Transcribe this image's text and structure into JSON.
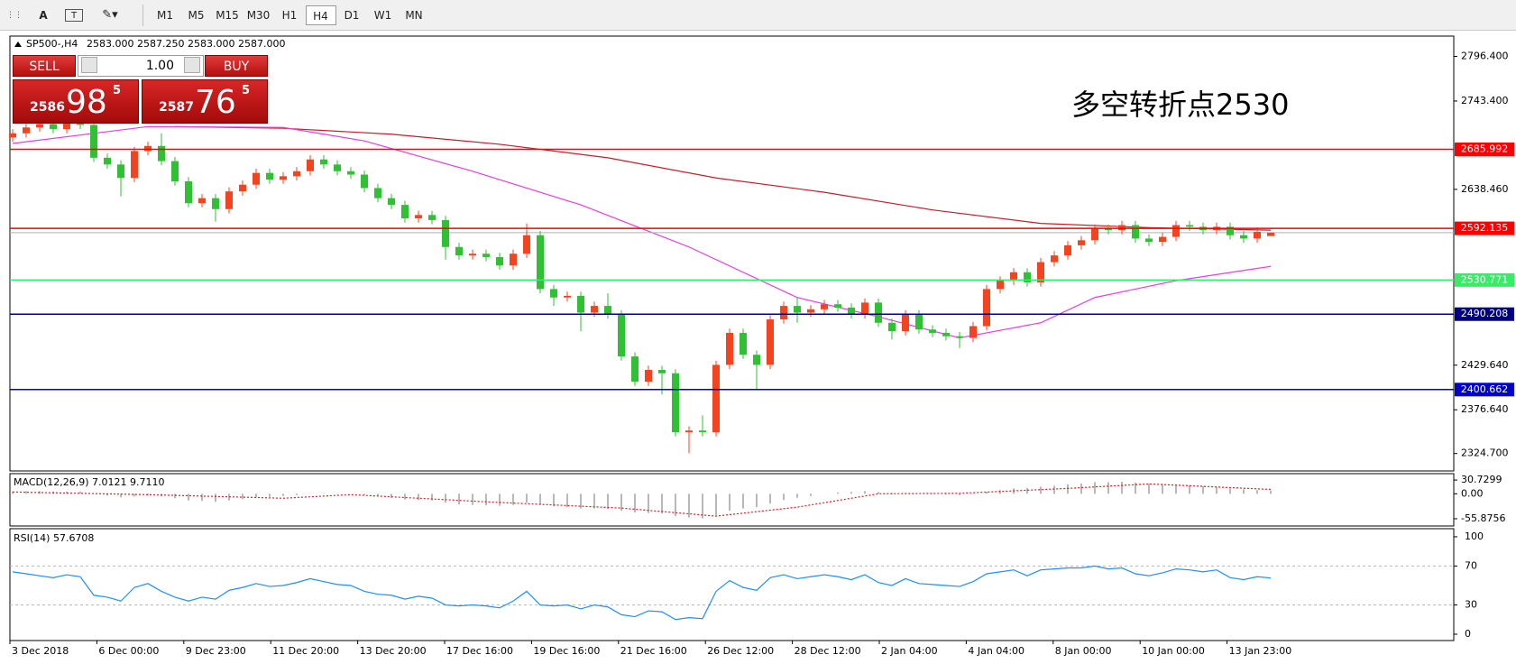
{
  "toolbar": {
    "text_tool": "A",
    "timeframes": [
      "M1",
      "M5",
      "M15",
      "M30",
      "H1",
      "H4",
      "D1",
      "W1",
      "MN"
    ],
    "active": "H4"
  },
  "trade": {
    "sell": "SELL",
    "buy": "BUY",
    "volume": {
      "value": 1,
      "label": "1.00"
    },
    "bid": {
      "big": "2586",
      "main": "98",
      "small": "5"
    },
    "ask": {
      "big": "2587",
      "main": "76",
      "small": "5"
    }
  },
  "chart_data": {
    "type": "candlestick",
    "symbol": "SP500-,H4",
    "ohlc": [
      {
        "value": 2583,
        "label": "2583.000"
      },
      {
        "value": 2587.25,
        "label": "2587.250"
      },
      {
        "value": 2583,
        "label": "2583.000"
      },
      {
        "value": 2587,
        "label": "2587.000"
      }
    ],
    "annotation": "多空转折点2530",
    "annotation_color": "#ff1a1a",
    "up_color": "#f4441f",
    "down_color": "#2fc033",
    "ylim": [
      2304,
      2820.5
    ],
    "yticks": [
      {
        "value": 2796.4,
        "label": "2796.400"
      },
      {
        "value": 2743.4,
        "label": "2743.400"
      },
      {
        "value": 2638.46,
        "label": "2638.460"
      },
      {
        "value": 2429.64,
        "label": "2429.640"
      },
      {
        "value": 2376.64,
        "label": "2376.640"
      },
      {
        "value": 2324.7,
        "label": "2324.700"
      }
    ],
    "levels": [
      {
        "value": 2685.992,
        "color": "#ff0000"
      },
      {
        "value": 2592.135,
        "color": "#ff0000"
      },
      {
        "value": 2530.771,
        "color": "#33ee66"
      },
      {
        "value": 2490.208,
        "color": "#000080"
      },
      {
        "value": 2400.662,
        "color": "#0000cc"
      }
    ],
    "x_labels": [
      "3 Dec 2018",
      "6 Dec 00:00",
      "9 Dec 23:00",
      "11 Dec 20:00",
      "13 Dec 20:00",
      "17 Dec 16:00",
      "19 Dec 16:00",
      "21 Dec 16:00",
      "26 Dec 12:00",
      "28 Dec 12:00",
      "2 Jan 04:00",
      "4 Jan 04:00",
      "8 Jan 00:00",
      "10 Jan 00:00",
      "13 Jan 23:00"
    ],
    "candles": [
      [
        2700,
        2710,
        2695,
        2705
      ],
      [
        2705,
        2717,
        2700,
        2712
      ],
      [
        2712,
        2721,
        2707,
        2716
      ],
      [
        2716,
        2721,
        2705,
        2710
      ],
      [
        2710,
        2723,
        2705,
        2718
      ],
      [
        2718,
        2723,
        2710,
        2715
      ],
      [
        2715,
        2720,
        2671,
        2676
      ],
      [
        2676,
        2681,
        2663,
        2668
      ],
      [
        2668,
        2673,
        2630,
        2652
      ],
      [
        2652,
        2689,
        2647,
        2684
      ],
      [
        2684,
        2695,
        2679,
        2690
      ],
      [
        2690,
        2705,
        2667,
        2672
      ],
      [
        2672,
        2677,
        2643,
        2648
      ],
      [
        2648,
        2653,
        2617,
        2622
      ],
      [
        2622,
        2633,
        2617,
        2628
      ],
      [
        2628,
        2633,
        2600,
        2615
      ],
      [
        2615,
        2641,
        2610,
        2636
      ],
      [
        2636,
        2649,
        2631,
        2644
      ],
      [
        2644,
        2663,
        2639,
        2658
      ],
      [
        2658,
        2663,
        2645,
        2650
      ],
      [
        2650,
        2659,
        2645,
        2654
      ],
      [
        2654,
        2665,
        2649,
        2660
      ],
      [
        2660,
        2679,
        2655,
        2674
      ],
      [
        2674,
        2679,
        2663,
        2668
      ],
      [
        2668,
        2673,
        2655,
        2660
      ],
      [
        2660,
        2665,
        2651,
        2656
      ],
      [
        2656,
        2661,
        2635,
        2640
      ],
      [
        2640,
        2645,
        2623,
        2628
      ],
      [
        2628,
        2633,
        2615,
        2620
      ],
      [
        2620,
        2625,
        2599,
        2604
      ],
      [
        2604,
        2613,
        2599,
        2608
      ],
      [
        2608,
        2613,
        2597,
        2602
      ],
      [
        2602,
        2607,
        2555,
        2570
      ],
      [
        2570,
        2575,
        2555,
        2560
      ],
      [
        2560,
        2567,
        2555,
        2562
      ],
      [
        2562,
        2567,
        2553,
        2558
      ],
      [
        2558,
        2563,
        2543,
        2548
      ],
      [
        2548,
        2567,
        2543,
        2562
      ],
      [
        2562,
        2598,
        2557,
        2584
      ],
      [
        2584,
        2589,
        2515,
        2520
      ],
      [
        2520,
        2525,
        2500,
        2510
      ],
      [
        2510,
        2517,
        2505,
        2512
      ],
      [
        2512,
        2517,
        2470,
        2492
      ],
      [
        2492,
        2505,
        2487,
        2500
      ],
      [
        2500,
        2515,
        2485,
        2490
      ],
      [
        2490,
        2495,
        2435,
        2440
      ],
      [
        2440,
        2445,
        2405,
        2410
      ],
      [
        2410,
        2429,
        2405,
        2424
      ],
      [
        2424,
        2429,
        2395,
        2420
      ],
      [
        2420,
        2425,
        2345,
        2350
      ],
      [
        2350,
        2357,
        2325,
        2352
      ],
      [
        2352,
        2370,
        2345,
        2350
      ],
      [
        2350,
        2435,
        2345,
        2430
      ],
      [
        2430,
        2473,
        2425,
        2468
      ],
      [
        2468,
        2473,
        2437,
        2442
      ],
      [
        2442,
        2447,
        2400,
        2430
      ],
      [
        2430,
        2489,
        2425,
        2484
      ],
      [
        2484,
        2505,
        2479,
        2500
      ],
      [
        2500,
        2510,
        2480,
        2492
      ],
      [
        2492,
        2501,
        2487,
        2496
      ],
      [
        2496,
        2507,
        2491,
        2502
      ],
      [
        2502,
        2507,
        2493,
        2498
      ],
      [
        2498,
        2503,
        2485,
        2490
      ],
      [
        2490,
        2509,
        2485,
        2504
      ],
      [
        2504,
        2509,
        2475,
        2480
      ],
      [
        2480,
        2485,
        2460,
        2470
      ],
      [
        2470,
        2495,
        2465,
        2490
      ],
      [
        2490,
        2495,
        2467,
        2472
      ],
      [
        2472,
        2477,
        2463,
        2468
      ],
      [
        2468,
        2473,
        2459,
        2464
      ],
      [
        2464,
        2469,
        2450,
        2462
      ],
      [
        2462,
        2481,
        2457,
        2476
      ],
      [
        2476,
        2525,
        2471,
        2520
      ],
      [
        2520,
        2535,
        2515,
        2530
      ],
      [
        2530,
        2545,
        2525,
        2540
      ],
      [
        2540,
        2545,
        2523,
        2528
      ],
      [
        2528,
        2557,
        2523,
        2552
      ],
      [
        2552,
        2565,
        2547,
        2560
      ],
      [
        2560,
        2577,
        2555,
        2572
      ],
      [
        2572,
        2583,
        2567,
        2578
      ],
      [
        2578,
        2597,
        2573,
        2592
      ],
      [
        2592,
        2597,
        2585,
        2590
      ],
      [
        2590,
        2601,
        2585,
        2596
      ],
      [
        2596,
        2601,
        2575,
        2580
      ],
      [
        2580,
        2585,
        2571,
        2576
      ],
      [
        2576,
        2587,
        2571,
        2582
      ],
      [
        2582,
        2601,
        2577,
        2596
      ],
      [
        2596,
        2601,
        2589,
        2594
      ],
      [
        2594,
        2599,
        2585,
        2590
      ],
      [
        2590,
        2599,
        2585,
        2594
      ],
      [
        2594,
        2599,
        2579,
        2584
      ],
      [
        2584,
        2589,
        2575,
        2580
      ],
      [
        2580,
        2593,
        2575,
        2588
      ],
      [
        2583,
        2587.25,
        2583,
        2587
      ]
    ],
    "moving_averages": [
      {
        "color": "#c0202a",
        "x": [
          12,
          20,
          28,
          36,
          44,
          52,
          60,
          68,
          76,
          84,
          93
        ],
        "values": [
          2713,
          2711,
          2704,
          2692,
          2676,
          2652,
          2635,
          2614,
          2598,
          2593,
          2590
        ]
      },
      {
        "color": "#e040e0",
        "x": [
          0,
          10,
          20,
          26,
          34,
          42,
          50,
          58,
          64,
          70,
          76,
          80,
          86,
          93
        ],
        "values": [
          2693,
          2713,
          2712,
          2696,
          2660,
          2620,
          2570,
          2510,
          2487,
          2462,
          2480,
          2510,
          2530,
          2547
        ]
      }
    ],
    "macd": {
      "title": "MACD(12,26,9) 7.0121 9.7110",
      "ylim": [
        -72,
        45
      ],
      "yticks": [
        30.7299,
        {
          "value": 0,
          "label": "0.00"
        },
        -55.8756
      ],
      "histogram_color": "#a0a0a0",
      "signal_color": "#e02020",
      "histogram": [
        5,
        6,
        6,
        5,
        5,
        5,
        0,
        -4,
        -8,
        -6,
        -4,
        -6,
        -10,
        -15,
        -16,
        -18,
        -15,
        -12,
        -8,
        -7,
        -5,
        -3,
        0,
        1,
        1,
        0,
        -3,
        -6,
        -9,
        -13,
        -14,
        -15,
        -20,
        -24,
        -25,
        -26,
        -27,
        -25,
        -20,
        -25,
        -28,
        -30,
        -33,
        -33,
        -34,
        -38,
        -42,
        -43,
        -44,
        -50,
        -53,
        -55,
        -48,
        -38,
        -33,
        -30,
        -22,
        -14,
        -9,
        -5,
        0,
        3,
        4,
        6,
        4,
        2,
        2,
        0,
        -1,
        -2,
        -3,
        -1,
        4,
        8,
        12,
        13,
        16,
        18,
        21,
        23,
        26,
        26,
        27,
        25,
        23,
        22,
        21,
        19,
        17,
        15,
        12,
        10,
        8,
        7.0121
      ],
      "signal": {
        "x": [
          0,
          10,
          20,
          25,
          35,
          45,
          52,
          58,
          64,
          70,
          78,
          84,
          93
        ],
        "values": [
          4,
          -2,
          -10,
          -2,
          -18,
          -32,
          -50,
          -30,
          0,
          1,
          12,
          22,
          9.711
        ]
      }
    },
    "rsi": {
      "title": "RSI(14) 57.6708",
      "ylim": [
        -6.5,
        108.3
      ],
      "yticks": [
        100,
        70,
        30,
        0
      ],
      "levels": [
        70,
        30
      ],
      "color": "#1e8fff",
      "values": [
        64,
        62,
        60,
        58,
        61,
        59,
        40,
        38,
        34,
        48,
        52,
        44,
        38,
        34,
        38,
        36,
        45,
        48,
        52,
        49,
        50,
        53,
        57,
        54,
        51,
        50,
        44,
        41,
        40,
        36,
        39,
        37,
        30,
        29,
        30,
        29,
        27,
        34,
        44,
        30,
        29,
        30,
        26,
        30,
        28,
        20,
        18,
        24,
        23,
        15,
        17,
        16,
        44,
        55,
        48,
        45,
        58,
        61,
        57,
        59,
        61,
        59,
        56,
        61,
        53,
        50,
        57,
        52,
        51,
        50,
        49,
        54,
        62,
        64,
        66,
        60,
        66,
        67,
        68,
        68,
        70,
        67,
        68,
        62,
        60,
        63,
        67,
        66,
        64,
        66,
        58,
        56,
        59,
        57.6708
      ]
    }
  }
}
